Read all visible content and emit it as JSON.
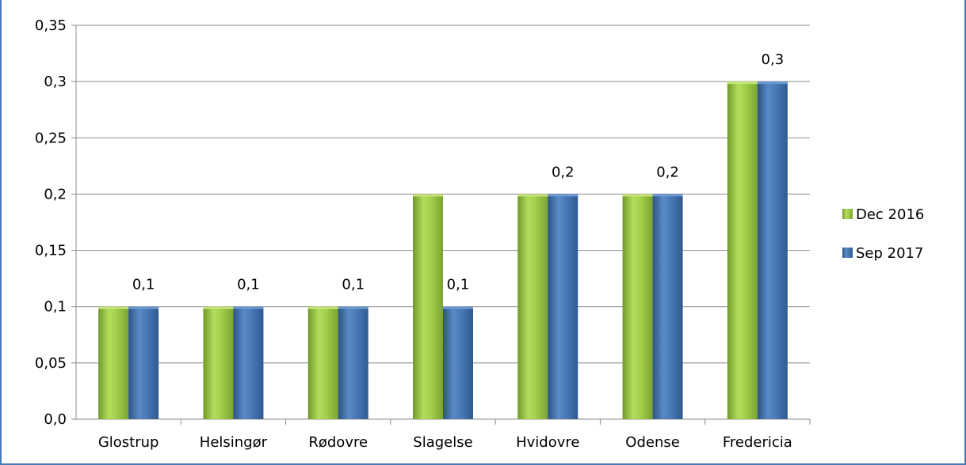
{
  "chart_data": {
    "type": "bar",
    "title": "",
    "xlabel": "",
    "ylabel": "",
    "categories": [
      "Glostrup",
      "Helsingør",
      "Rødovre",
      "Slagelse",
      "Hvidovre",
      "Odense",
      "Fredericia"
    ],
    "series": [
      {
        "name": "Dec 2016",
        "values": [
          0.1,
          0.1,
          0.1,
          0.2,
          0.2,
          0.2,
          0.3
        ],
        "color": "#92c13e"
      },
      {
        "name": "Sep 2017",
        "values": [
          0.1,
          0.1,
          0.1,
          0.1,
          0.2,
          0.2,
          0.3
        ],
        "color": "#3f6fad"
      }
    ],
    "data_labels": {
      "series": "Sep 2017",
      "text": [
        "0,1",
        "0,1",
        "0,1",
        "0,1",
        "0,2",
        "0,2",
        "0,3"
      ]
    },
    "ylim": [
      0,
      0.35
    ],
    "yticks": [
      "0,0",
      "0,05",
      "0,1",
      "0,15",
      "0,2",
      "0,25",
      "0,3",
      "0,35"
    ],
    "ytick_values": [
      0,
      0.05,
      0.1,
      0.15,
      0.2,
      0.25,
      0.3,
      0.35
    ],
    "grid": true,
    "legend_position": "right"
  }
}
